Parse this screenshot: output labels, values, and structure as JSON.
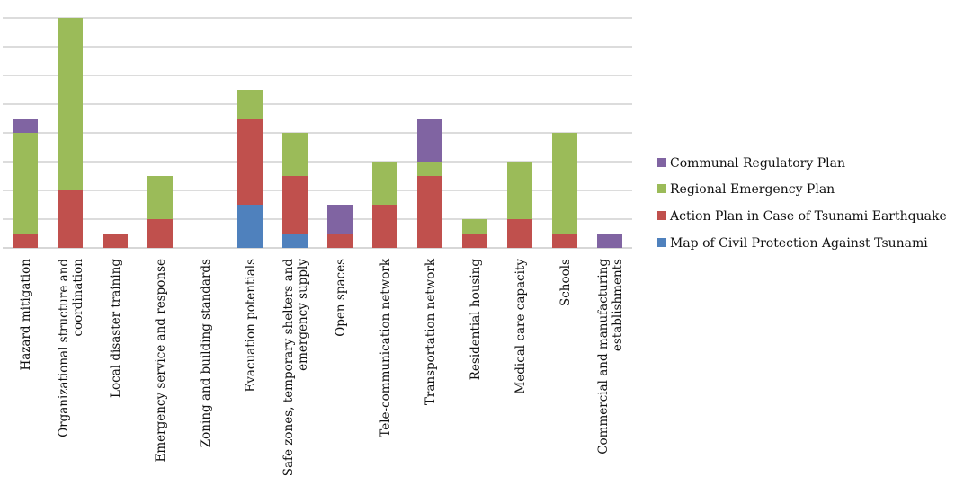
{
  "chart_data": {
    "type": "bar",
    "stacked": true,
    "title": "",
    "xlabel": "",
    "ylabel": "",
    "ylim": [
      0,
      16
    ],
    "grid_step": 2,
    "grid": true,
    "legend_position": "right",
    "categories": [
      [
        "Hazard mitigation"
      ],
      [
        "Organizational structure and",
        "coordination"
      ],
      [
        "Local disaster training"
      ],
      [
        "Emergency service and response"
      ],
      [
        "Zoning and building standards"
      ],
      [
        "Evacuation potentials"
      ],
      [
        "Safe zones, temporary shelters and",
        "emergency supply"
      ],
      [
        "Open spaces"
      ],
      [
        "Tele-communication network"
      ],
      [
        "Transportation network"
      ],
      [
        "Residential housing"
      ],
      [
        "Medical care capacity"
      ],
      [
        "Schools"
      ],
      [
        "Commercial and manufacturing",
        "establishments"
      ]
    ],
    "series": [
      {
        "name": "Map of Civil Protection Against Tsunami",
        "color": "#4f81bd",
        "values": [
          0,
          0,
          0,
          0,
          0,
          3,
          1,
          0,
          0,
          0,
          0,
          0,
          0,
          0
        ]
      },
      {
        "name": "Action Plan in Case of Tsunami Earthquake",
        "color": "#c0504d",
        "values": [
          1,
          4,
          1,
          2,
          0,
          6,
          4,
          1,
          3,
          5,
          1,
          2,
          1,
          0
        ]
      },
      {
        "name": "Regional Emergency Plan",
        "color": "#9bbb59",
        "values": [
          7,
          12,
          0,
          3,
          0,
          2,
          3,
          0,
          3,
          1,
          1,
          4,
          7,
          0
        ]
      },
      {
        "name": "Communal Regulatory Plan",
        "color": "#8064a2",
        "values": [
          1,
          0,
          0,
          0,
          0,
          0,
          0,
          2,
          0,
          3,
          0,
          0,
          0,
          1
        ]
      }
    ],
    "legend_order": [
      3,
      2,
      1,
      0
    ]
  }
}
